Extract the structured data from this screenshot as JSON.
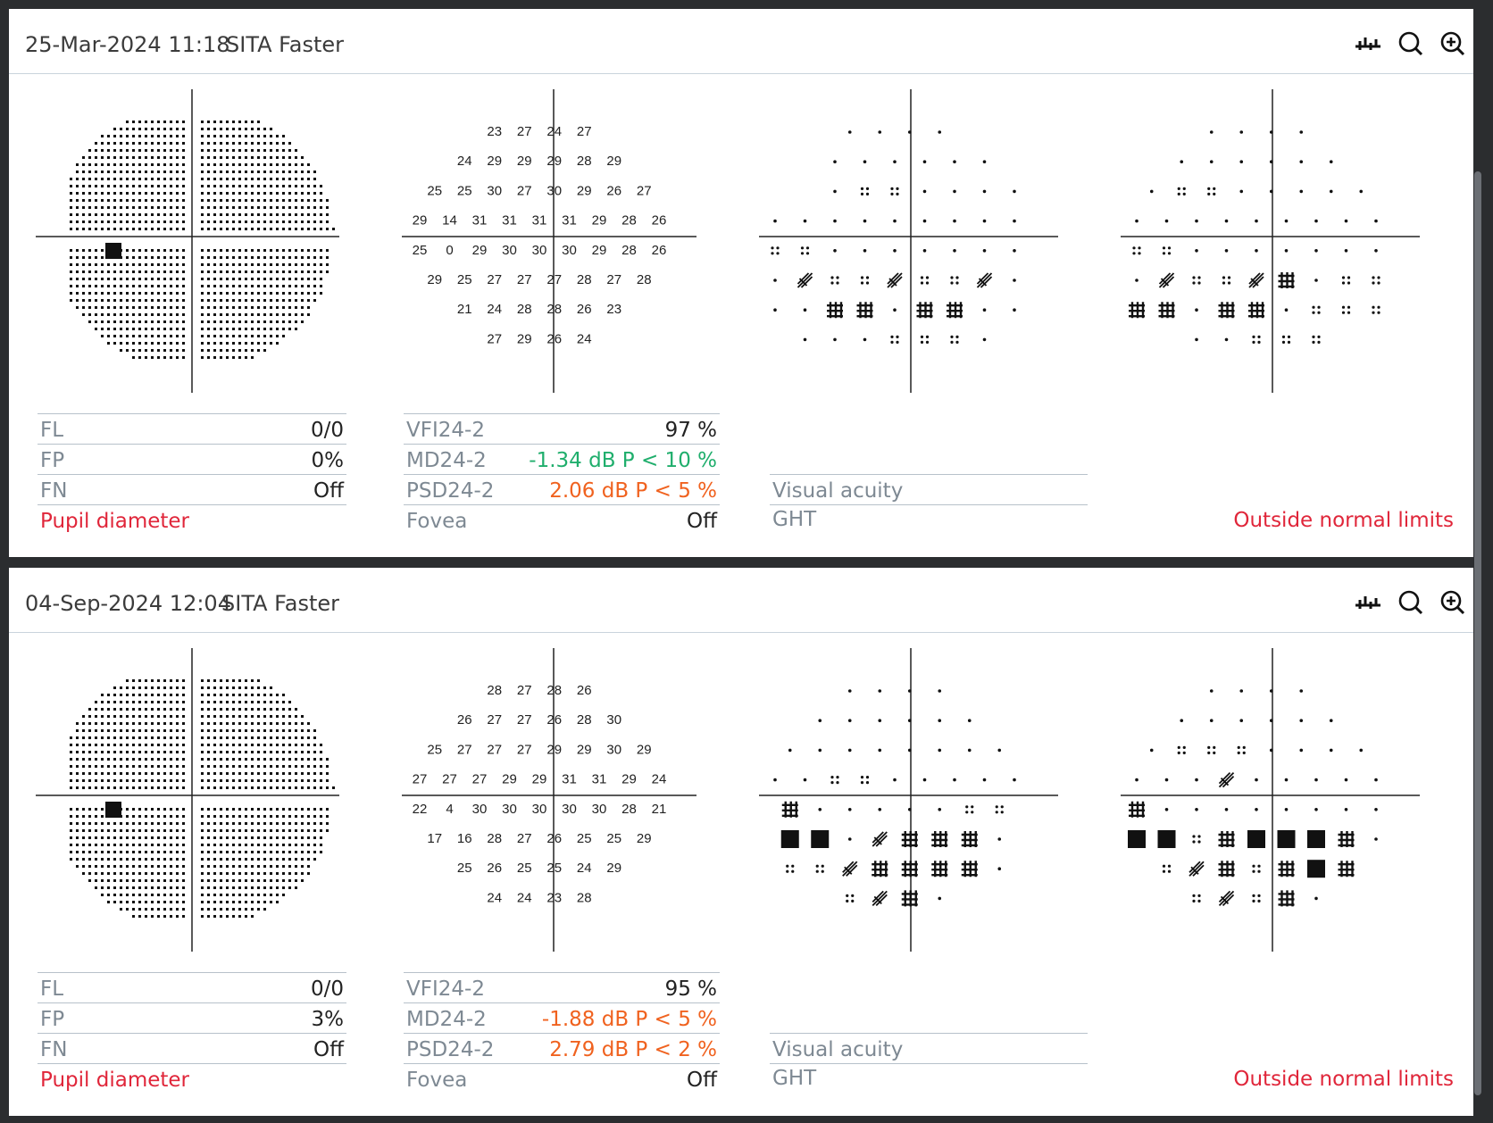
{
  "tests": [
    {
      "date": "25-Mar-2024 11:18",
      "strategy": "SITA Faster",
      "threshold": {
        "rows": [
          [
            "23",
            "27",
            "24",
            "27"
          ],
          [
            "24",
            "29",
            "29",
            "29",
            "28",
            "29"
          ],
          [
            "25",
            "25",
            "30",
            "27",
            "30",
            "29",
            "26",
            "27"
          ],
          [
            "29",
            "14",
            "31",
            "31",
            "31",
            "31",
            "29",
            "28",
            "26"
          ],
          [
            "25",
            "0",
            "29",
            "30",
            "30",
            "30",
            "29",
            "28",
            "26"
          ],
          [
            "29",
            "25",
            "27",
            "27",
            "27",
            "28",
            "27",
            "28"
          ],
          [
            "21",
            "24",
            "28",
            "28",
            "26",
            "23"
          ],
          [
            "27",
            "29",
            "26",
            "24"
          ]
        ]
      },
      "total_deviation": [
        "....",
        "......",
        "..::.....",
        "............",
        "::.......:..",
        ".*:: *::*...",
        "..##.##..::##..",
        "...:::."
      ],
      "reliability": {
        "fl_label": "FL",
        "fl": "0/0",
        "fp_label": "FP",
        "fp": "0%",
        "fn_label": "FN",
        "fn": "Off",
        "pupil_label": "Pupil diameter"
      },
      "global": {
        "vfi_label": "VFI24-2",
        "vfi": "97 %",
        "md_label": "MD24-2",
        "md": "-1.34 dB P < 10 %",
        "psd_label": "PSD24-2",
        "psd": "2.06 dB P < 5 %",
        "fovea_label": "Fovea",
        "fovea": "Off"
      },
      "va_label": "Visual acuity",
      "ght_label": "GHT",
      "ght": "Outside normal limits"
    },
    {
      "date": "04-Sep-2024 12:04",
      "strategy": "SITA Faster",
      "threshold": {
        "rows": [
          [
            "28",
            "27",
            "28",
            "26"
          ],
          [
            "26",
            "27",
            "27",
            "26",
            "28",
            "30"
          ],
          [
            "25",
            "27",
            "27",
            "27",
            "29",
            "29",
            "30",
            "29"
          ],
          [
            "27",
            "27",
            "27",
            "29",
            "29",
            "31",
            "31",
            "29",
            "24"
          ],
          [
            "22",
            "4",
            "30",
            "30",
            "30",
            "30",
            "30",
            "28",
            "21"
          ],
          [
            "17",
            "16",
            "28",
            "27",
            "26",
            "25",
            "25",
            "29"
          ],
          [
            "25",
            "26",
            "25",
            "25",
            "24",
            "29"
          ],
          [
            "24",
            "24",
            "23",
            "28"
          ]
        ]
      },
      "reliability": {
        "fl_label": "FL",
        "fl": "0/0",
        "fp_label": "FP",
        "fp": "3%",
        "fn_label": "FN",
        "fn": "Off",
        "pupil_label": "Pupil diameter"
      },
      "global": {
        "vfi_label": "VFI24-2",
        "vfi": "95 %",
        "md_label": "MD24-2",
        "md": "-1.88 dB P < 5 %",
        "psd_label": "PSD24-2",
        "psd": "2.79 dB P < 2 %",
        "fovea_label": "Fovea",
        "fovea": "Off"
      },
      "va_label": "Visual acuity",
      "ght_label": "GHT",
      "ght": "Outside normal limits"
    }
  ],
  "colors": {
    "normal": "#222222",
    "green": "#1fae6c",
    "orange": "#f0621f",
    "red": "#e0263a",
    "label": "#7e8993"
  },
  "icons": [
    "chart-icon",
    "search-icon",
    "zoom-in-icon"
  ]
}
